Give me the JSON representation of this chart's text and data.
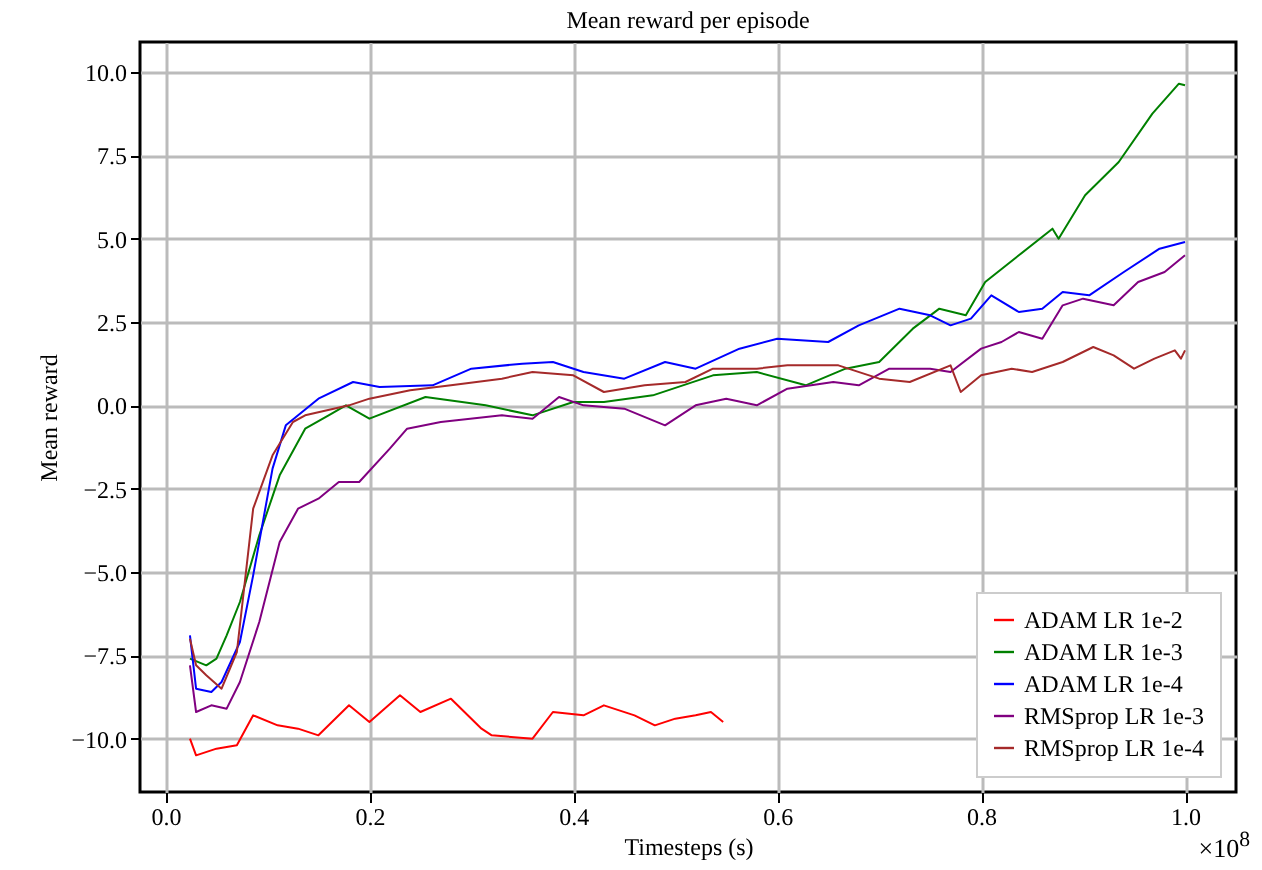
{
  "chart_data": {
    "type": "line",
    "title": "Mean reward per episode",
    "xlabel": "Timesteps (s)",
    "ylabel": "Mean reward",
    "annotations": [
      "×10$^{8}$"
    ],
    "xlim": [
      -0.025,
      1.05
    ],
    "ylim": [
      -11.6,
      10.9
    ],
    "xticks": [
      {
        "value": 0,
        "label": "0.0"
      },
      0.2,
      0.4,
      0.6,
      0.8,
      {
        "value": 1,
        "label": "1.0"
      }
    ],
    "yticks": [
      {
        "value": -10,
        "label": "−10.0"
      },
      {
        "value": -7.5,
        "label": "−7.5"
      },
      {
        "value": -5,
        "label": "−5.0"
      },
      {
        "value": -2.5,
        "label": "−2.5"
      },
      {
        "value": 0,
        "label": "0.0"
      },
      {
        "value": 2.5,
        "label": "2.5"
      },
      {
        "value": 5,
        "label": "5.0"
      },
      {
        "value": 7.5,
        "label": "7.5"
      },
      {
        "value": 10,
        "label": "10.0"
      }
    ],
    "grid": true,
    "legend": "bottom right",
    "line_style": "solid",
    "marker": "none",
    "series": [
      {
        "name": "ADAM LR 1e-2",
        "color": "#ff0000",
        "x": [
          0.024,
          0.03,
          0.05,
          0.07,
          0.086,
          0.11,
          0.13,
          0.15,
          0.18,
          0.2,
          0.23,
          0.25,
          0.28,
          0.31,
          0.32,
          0.36,
          0.38,
          0.41,
          0.43,
          0.46,
          0.48,
          0.5,
          0.52,
          0.535,
          0.547
        ],
        "values": [
          -10.0,
          -10.5,
          -10.3,
          -10.2,
          -9.3,
          -9.6,
          -9.7,
          -9.9,
          -9.0,
          -9.5,
          -8.7,
          -9.2,
          -8.8,
          -9.7,
          -9.9,
          -10.0,
          -9.2,
          -9.3,
          -9.0,
          -9.3,
          -9.6,
          -9.4,
          -9.3,
          -9.2,
          -9.5
        ]
      },
      {
        "name": "ADAM LR 1e-3",
        "color": "#008000",
        "x": [
          0.024,
          0.04,
          0.05,
          0.06,
          0.073,
          0.092,
          0.112,
          0.137,
          0.16,
          0.177,
          0.2,
          0.255,
          0.314,
          0.36,
          0.4,
          0.43,
          0.478,
          0.537,
          0.58,
          0.628,
          0.667,
          0.7,
          0.733,
          0.759,
          0.785,
          0.804,
          0.837,
          0.87,
          0.876,
          0.902,
          0.935,
          0.968,
          0.994,
          1.0
        ],
        "values": [
          -7.6,
          -7.8,
          -7.6,
          -6.9,
          -5.9,
          -3.9,
          -2.1,
          -0.7,
          -0.3,
          0.0,
          -0.4,
          0.25,
          0.0,
          -0.3,
          0.1,
          0.1,
          0.3,
          0.9,
          1.0,
          0.6,
          1.1,
          1.3,
          2.3,
          2.9,
          2.7,
          3.7,
          4.5,
          5.3,
          5.0,
          6.3,
          7.3,
          8.75,
          9.65,
          9.6
        ]
      },
      {
        "name": "ADAM LR 1e-4",
        "color": "#0000ff",
        "x": [
          0.024,
          0.03,
          0.045,
          0.055,
          0.073,
          0.086,
          0.105,
          0.118,
          0.15,
          0.184,
          0.21,
          0.262,
          0.3,
          0.35,
          0.38,
          0.41,
          0.45,
          0.49,
          0.52,
          0.563,
          0.6,
          0.65,
          0.68,
          0.72,
          0.75,
          0.77,
          0.79,
          0.81,
          0.837,
          0.86,
          0.88,
          0.906,
          0.94,
          0.975,
          1.0
        ],
        "values": [
          -6.9,
          -8.5,
          -8.6,
          -8.3,
          -7.1,
          -5.1,
          -1.9,
          -0.6,
          0.2,
          0.7,
          0.55,
          0.6,
          1.1,
          1.25,
          1.3,
          1.0,
          0.8,
          1.3,
          1.1,
          1.7,
          2.0,
          1.9,
          2.4,
          2.9,
          2.7,
          2.4,
          2.6,
          3.3,
          2.8,
          2.9,
          3.4,
          3.3,
          4.0,
          4.7,
          4.9
        ]
      },
      {
        "name": "RMSprop LR 1e-3",
        "color": "#800080",
        "x": [
          0.024,
          0.03,
          0.045,
          0.06,
          0.073,
          0.092,
          0.112,
          0.13,
          0.15,
          0.17,
          0.19,
          0.22,
          0.237,
          0.27,
          0.33,
          0.36,
          0.386,
          0.41,
          0.45,
          0.49,
          0.52,
          0.55,
          0.58,
          0.61,
          0.655,
          0.68,
          0.71,
          0.75,
          0.77,
          0.8,
          0.82,
          0.837,
          0.86,
          0.88,
          0.9,
          0.93,
          0.954,
          0.98,
          1.0
        ],
        "values": [
          -7.8,
          -9.2,
          -9.0,
          -9.1,
          -8.3,
          -6.5,
          -4.1,
          -3.1,
          -2.8,
          -2.3,
          -2.3,
          -1.3,
          -0.7,
          -0.5,
          -0.3,
          -0.4,
          0.25,
          0.0,
          -0.1,
          -0.6,
          0.0,
          0.2,
          0.0,
          0.5,
          0.7,
          0.6,
          1.1,
          1.1,
          1.0,
          1.7,
          1.9,
          2.2,
          2.0,
          3.0,
          3.2,
          3.0,
          3.7,
          4.0,
          4.5
        ]
      },
      {
        "name": "RMSprop LR 1e-4",
        "color": "#a52a2a",
        "x": [
          0.024,
          0.03,
          0.04,
          0.055,
          0.07,
          0.086,
          0.105,
          0.125,
          0.137,
          0.18,
          0.2,
          0.24,
          0.28,
          0.33,
          0.36,
          0.4,
          0.43,
          0.47,
          0.51,
          0.537,
          0.58,
          0.61,
          0.66,
          0.7,
          0.73,
          0.77,
          0.78,
          0.8,
          0.83,
          0.85,
          0.88,
          0.91,
          0.93,
          0.95,
          0.97,
          0.99,
          0.996,
          1.0
        ],
        "values": [
          -7.0,
          -7.8,
          -8.1,
          -8.5,
          -7.4,
          -3.1,
          -1.5,
          -0.5,
          -0.3,
          0.0,
          0.2,
          0.45,
          0.6,
          0.8,
          1.0,
          0.9,
          0.4,
          0.6,
          0.7,
          1.1,
          1.1,
          1.2,
          1.2,
          0.8,
          0.7,
          1.2,
          0.4,
          0.9,
          1.1,
          1.0,
          1.3,
          1.75,
          1.5,
          1.1,
          1.4,
          1.65,
          1.4,
          1.65
        ]
      }
    ]
  }
}
